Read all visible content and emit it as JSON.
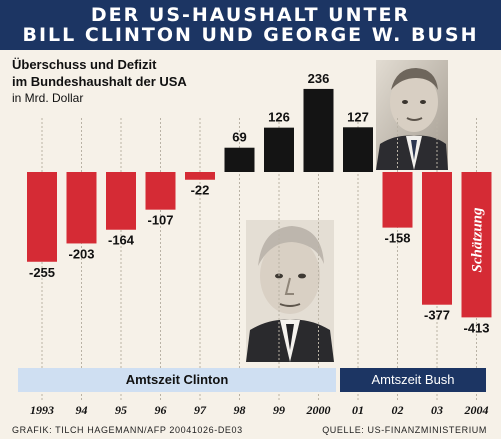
{
  "header": {
    "line1": "DER US-HAUSHALT UNTER",
    "line2": "BILL CLINTON UND GEORGE W. BUSH"
  },
  "chart_data": {
    "type": "bar",
    "subtitle_line1": "Überschuss und Defizit",
    "subtitle_line2": "im Bundeshaushalt der USA",
    "unit": "in Mrd. Dollar",
    "categories": [
      "1993",
      "94",
      "95",
      "96",
      "97",
      "98",
      "99",
      "2000",
      "01",
      "02",
      "03",
      "2004"
    ],
    "values": [
      -255,
      -203,
      -164,
      -107,
      -22,
      69,
      126,
      236,
      127,
      -158,
      -377,
      -413
    ],
    "value_labels": [
      "-255",
      "-203",
      "-164",
      "-107",
      "-22",
      "69",
      "126",
      "236",
      "127",
      "-158",
      "-377",
      "-413"
    ],
    "estimate_label": "Schätzung",
    "colors": {
      "surplus": "#141414",
      "deficit": "#d52b35",
      "grid": "#b9b2a5"
    },
    "grid": true
  },
  "terms": {
    "clinton": "Amtszeit Clinton",
    "bush": "Amtszeit Bush"
  },
  "footer": {
    "credit": "GRAFIK: TILCH HAGEMANN/AFP 20041026-DE03",
    "source": "QUELLE: US-FINANZMINISTERIUM"
  },
  "photos": {
    "bush": "portrait-photo-george-w-bush",
    "clinton": "portrait-photo-bill-clinton"
  }
}
